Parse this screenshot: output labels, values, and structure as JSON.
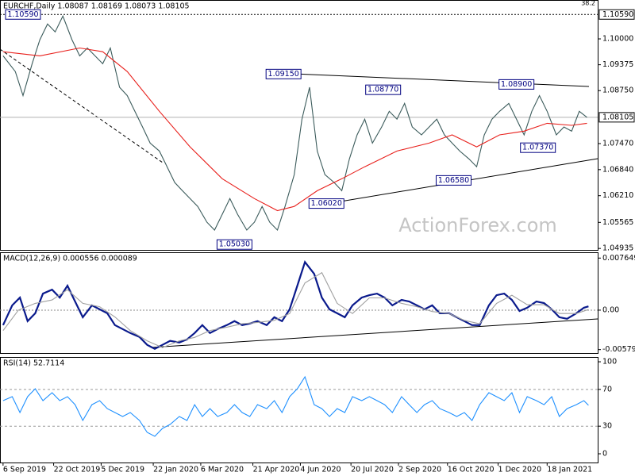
{
  "chart_data": [
    {
      "type": "line",
      "title": "EURCHF,Daily  1.08087 1.08169 1.08073 1.08105",
      "corner_label": "38.2",
      "watermark": "ActionForex.com",
      "xlim": [
        -2,
        388
      ],
      "ylim": [
        1.049,
        1.1094
      ],
      "yticks": [
        {
          "value": 1.1,
          "label": "1.10000"
        },
        {
          "value": 1.09375,
          "label": "1.09375"
        },
        {
          "value": 1.0875,
          "label": "1.08750"
        },
        {
          "value": 1.0747,
          "label": "1.07470"
        },
        {
          "value": 1.0684,
          "label": "1.06840"
        },
        {
          "value": 1.0621,
          "label": "1.06210"
        },
        {
          "value": 1.05565,
          "label": "1.05565"
        },
        {
          "value": 1.04935,
          "label": "1.04935"
        }
      ],
      "last_price": {
        "value": 1.08105,
        "label": "1.08105"
      },
      "reference_line": {
        "value": 1.1059,
        "label": "1.10590"
      },
      "annotations": [
        {
          "x": 13,
          "value": 1.1059,
          "label": "1.10590"
        },
        {
          "x": 183,
          "value": 1.0915,
          "label": "1.09150"
        },
        {
          "x": 248,
          "value": 1.0877,
          "label": "1.08770"
        },
        {
          "x": 335,
          "value": 1.089,
          "label": "1.08900"
        },
        {
          "x": 349,
          "value": 1.0737,
          "label": "1.07370"
        },
        {
          "x": 294,
          "value": 1.0658,
          "label": "1.06580"
        },
        {
          "x": 211,
          "value": 1.0602,
          "label": "1.06020"
        },
        {
          "x": 151,
          "value": 1.0503,
          "label": "1.05030"
        }
      ],
      "series": [
        {
          "color": "#3b5b5b",
          "x": [
            0,
            8,
            13,
            19,
            24,
            29,
            34,
            39,
            45,
            50,
            55,
            60,
            65,
            70,
            76,
            81,
            86,
            91,
            96,
            102,
            107,
            112,
            117,
            122,
            127,
            133,
            138,
            143,
            148,
            153,
            159,
            164,
            169,
            174,
            179,
            184,
            190,
            195,
            200,
            205,
            210,
            216,
            221,
            226,
            231,
            236,
            241,
            247,
            252,
            257,
            262,
            267,
            273,
            278,
            283,
            288,
            293,
            298,
            304,
            309,
            314,
            319,
            324,
            330,
            335,
            340,
            345,
            350,
            355,
            361,
            366,
            371,
            376,
            381
          ],
          "values": [
            1.0959,
            1.0921,
            1.0863,
            1.094,
            1.0998,
            1.1036,
            1.1017,
            1.1055,
            1.0998,
            1.0959,
            1.0978,
            1.0959,
            1.094,
            1.0978,
            1.0883,
            1.0863,
            1.0825,
            1.0787,
            1.0748,
            1.0729,
            1.0691,
            1.0653,
            1.0633,
            1.0614,
            1.0595,
            1.0557,
            1.0538,
            1.0576,
            1.0614,
            1.0576,
            1.0538,
            1.0557,
            1.0595,
            1.0557,
            1.0538,
            1.0595,
            1.0672,
            1.0806,
            1.0883,
            1.0729,
            1.0672,
            1.0653,
            1.0633,
            1.071,
            1.0768,
            1.0806,
            1.0748,
            1.0787,
            1.0825,
            1.0806,
            1.0844,
            1.0787,
            1.0768,
            1.0787,
            1.0806,
            1.0768,
            1.0748,
            1.0729,
            1.071,
            1.0691,
            1.0768,
            1.0806,
            1.0825,
            1.0844,
            1.0806,
            1.0768,
            1.0825,
            1.0863,
            1.0825,
            1.0768,
            1.0787,
            1.0777,
            1.0825,
            1.08105
          ]
        },
        {
          "color": "#e8201c",
          "x": [
            0,
            24,
            50,
            65,
            81,
            102,
            122,
            143,
            164,
            179,
            190,
            205,
            221,
            236,
            257,
            278,
            293,
            309,
            324,
            340,
            355,
            371,
            381
          ],
          "values": [
            1.0969,
            1.0959,
            1.0978,
            1.0969,
            1.0921,
            1.0825,
            1.0739,
            1.0662,
            1.0614,
            1.0585,
            1.0595,
            1.0633,
            1.0662,
            1.0691,
            1.0729,
            1.0748,
            1.0768,
            1.0739,
            1.0768,
            1.0777,
            1.0796,
            1.0791,
            1.0796
          ]
        }
      ]
    },
    {
      "type": "line",
      "title": "MACD(12,26,9) 0.000556 0.000089",
      "xlim": [
        -2,
        388
      ],
      "ylim": [
        -0.0063,
        0.0085
      ],
      "yticks": [
        {
          "value": 0.007649,
          "label": "0.007649"
        },
        {
          "value": 0,
          "label": "0.00"
        },
        {
          "value": -0.005797,
          "label": "-0.005797"
        }
      ],
      "series": [
        {
          "color": "#0a1a8c",
          "x": [
            0,
            6,
            11,
            16,
            21,
            26,
            32,
            37,
            42,
            47,
            52,
            58,
            63,
            68,
            73,
            78,
            83,
            89,
            94,
            99,
            104,
            109,
            115,
            120,
            125,
            130,
            135,
            140,
            146,
            151,
            156,
            161,
            166,
            172,
            177,
            182,
            187,
            192,
            197,
            203,
            208,
            213,
            218,
            223,
            228,
            234,
            239,
            244,
            249,
            254,
            260,
            265,
            270,
            275,
            280,
            285,
            291,
            296,
            301,
            306,
            311,
            317,
            322,
            327,
            332,
            337,
            342,
            348,
            353,
            358,
            363,
            368,
            374,
            379,
            382
          ],
          "values": [
            -0.0022,
            0.0007,
            0.00185,
            -0.00162,
            -0.00046,
            0.00243,
            0.00301,
            0.00185,
            0.00359,
            0.00127,
            -0.00104,
            0.0007,
            0.00012,
            -0.00046,
            -0.0022,
            -0.00278,
            -0.00336,
            -0.00394,
            -0.0051,
            -0.00568,
            -0.0051,
            -0.00452,
            -0.00475,
            -0.00429,
            -0.00336,
            -0.0022,
            -0.00336,
            -0.00278,
            -0.0022,
            -0.00162,
            -0.0022,
            -0.00197,
            -0.00162,
            -0.0022,
            -0.00104,
            -0.00162,
            0.00012,
            0.00359,
            0.00707,
            0.00533,
            0.00185,
            0.00012,
            -0.00046,
            -0.00104,
            0.0007,
            0.00185,
            0.0022,
            0.00243,
            0.00185,
            0.0007,
            0.00151,
            0.00127,
            0.0007,
            0.00012,
            0.0007,
            -0.00046,
            -0.00046,
            -0.00104,
            -0.00162,
            -0.0022,
            -0.0022,
            0.0007,
            0.0022,
            0.00243,
            0.00151,
            -0.00012,
            0.00035,
            0.00127,
            0.00104,
            0.00012,
            -0.00104,
            -0.00127,
            -0.00046,
            0.00035,
            0.000556
          ]
        },
        {
          "color": "#a0a0a0",
          "x": [
            0,
            10,
            21,
            32,
            42,
            52,
            63,
            73,
            83,
            94,
            104,
            115,
            125,
            135,
            146,
            156,
            166,
            177,
            187,
            197,
            208,
            218,
            228,
            239,
            249,
            260,
            270,
            280,
            291,
            301,
            311,
            322,
            332,
            342,
            353,
            363,
            374,
            382
          ],
          "values": [
            -0.003,
            0.0,
            0.001,
            0.0015,
            0.003,
            0.001,
            0.0005,
            -0.001,
            -0.003,
            -0.0045,
            -0.0055,
            -0.0045,
            -0.004,
            -0.003,
            -0.0025,
            -0.002,
            -0.0018,
            -0.0015,
            -0.0005,
            0.004,
            0.0055,
            0.001,
            -0.0005,
            0.0018,
            0.0018,
            0.001,
            0.0005,
            -0.0002,
            -0.0005,
            -0.0015,
            -0.002,
            0.001,
            0.0022,
            0.0008,
            0.0008,
            -0.0005,
            -0.0005,
            8.9e-05
          ]
        }
      ]
    },
    {
      "type": "line",
      "title": "RSI(14) 52.7114",
      "xlim": [
        -2,
        388
      ],
      "ylim": [
        -9.5,
        105.2
      ],
      "yticks": [
        0,
        30,
        70,
        100
      ],
      "dashed_levels": [
        30,
        70
      ],
      "xticks": [
        {
          "value": 0,
          "label": "6 Sep 2019"
        },
        {
          "value": 33,
          "label": "22 Oct 2019"
        },
        {
          "value": 64,
          "label": "5 Dec 2019"
        },
        {
          "value": 98,
          "label": "22 Jan 2020"
        },
        {
          "value": 129,
          "label": "6 Mar 2020"
        },
        {
          "value": 163,
          "label": "21 Apr 2020"
        },
        {
          "value": 194,
          "label": "4 Jun 2020"
        },
        {
          "value": 227,
          "label": "20 Jul 2020"
        },
        {
          "value": 258,
          "label": "2 Sep 2020"
        },
        {
          "value": 290,
          "label": "16 Oct 2020"
        },
        {
          "value": 323,
          "label": "1 Dec 2020"
        },
        {
          "value": 355,
          "label": "18 Jan 2021"
        }
      ],
      "series": [
        {
          "color": "#1e90ff",
          "x": [
            0,
            6,
            11,
            16,
            21,
            26,
            32,
            37,
            42,
            47,
            52,
            58,
            63,
            68,
            73,
            78,
            83,
            89,
            94,
            99,
            104,
            109,
            115,
            120,
            125,
            130,
            135,
            140,
            146,
            151,
            156,
            161,
            166,
            172,
            177,
            182,
            187,
            192,
            197,
            203,
            208,
            213,
            218,
            223,
            228,
            234,
            239,
            244,
            249,
            254,
            260,
            265,
            270,
            275,
            280,
            285,
            291,
            296,
            301,
            306,
            311,
            317,
            322,
            327,
            332,
            337,
            342,
            348,
            353,
            358,
            363,
            368,
            374,
            379,
            382
          ],
          "values": [
            57.8,
            62.1,
            44.8,
            62.1,
            70.7,
            57.8,
            66.4,
            57.8,
            62.1,
            53.4,
            36.2,
            53.4,
            57.8,
            49.1,
            44.8,
            40.5,
            44.8,
            36.2,
            23.3,
            19.0,
            27.6,
            31.9,
            40.5,
            36.2,
            53.4,
            40.5,
            49.1,
            40.5,
            44.8,
            53.4,
            44.8,
            40.5,
            53.4,
            49.1,
            57.8,
            44.8,
            62.1,
            70.7,
            83.6,
            53.4,
            49.1,
            40.5,
            49.1,
            44.8,
            62.1,
            57.8,
            62.1,
            57.8,
            53.4,
            44.8,
            62.1,
            53.4,
            44.8,
            53.4,
            57.8,
            49.1,
            44.8,
            40.5,
            44.8,
            36.2,
            53.4,
            66.4,
            62.1,
            57.8,
            66.4,
            44.8,
            62.1,
            57.8,
            53.4,
            62.1,
            40.5,
            49.1,
            53.4,
            57.8,
            52.7114
          ]
        }
      ]
    }
  ]
}
